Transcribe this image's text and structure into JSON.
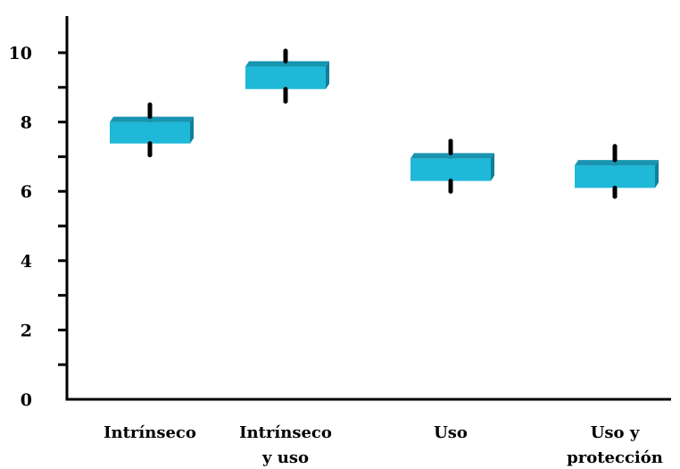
{
  "chart_data": {
    "type": "box",
    "categories": [
      [
        "Intrínseco"
      ],
      [
        "Intrínseco",
        "y uso"
      ],
      [
        "Uso"
      ],
      [
        "Uso y",
        "protección"
      ]
    ],
    "boxes": [
      {
        "min": 7.05,
        "q1": 7.38,
        "q3": 8.0,
        "max": 8.5
      },
      {
        "min": 8.6,
        "q1": 8.95,
        "q3": 9.6,
        "max": 10.05
      },
      {
        "min": 6.0,
        "q1": 6.3,
        "q3": 6.95,
        "max": 7.45
      },
      {
        "min": 5.85,
        "q1": 6.1,
        "q3": 6.75,
        "max": 7.3
      }
    ],
    "y_ticks": [
      0,
      2,
      4,
      6,
      8,
      10
    ],
    "ylim": [
      0,
      11
    ],
    "minor_tick_step": 1,
    "grid": false,
    "colors": {
      "box_front": "#1fb8d8",
      "box_top": "#1994b0",
      "box_side": "#137e98",
      "whisker": "#000000",
      "axis": "#000000"
    }
  }
}
